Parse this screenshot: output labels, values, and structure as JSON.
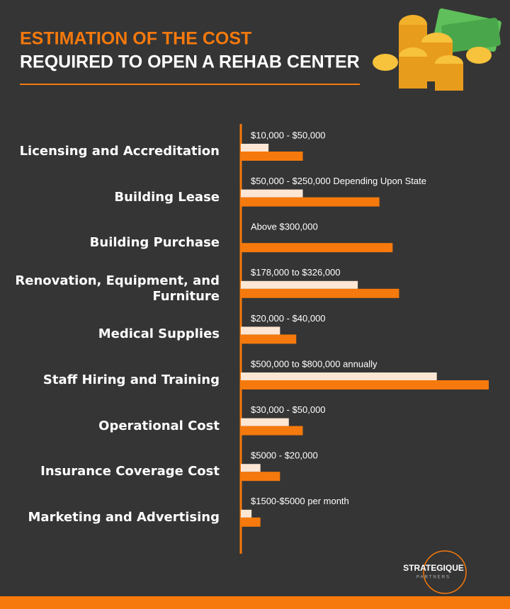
{
  "chart_data": {
    "type": "range-bar",
    "title": "ESTIMATION OF THE COST",
    "subtitle": "REQUIRED TO OPEN A REHAB CENTER",
    "categories": [
      "Licensing and Accreditation",
      "Building Lease",
      "Building Purchase",
      "Renovation, Equipment, and Furniture",
      "Medical Supplies",
      "Staff Hiring and Training",
      "Operational Cost",
      "Insurance Coverage Cost",
      "Marketing and Advertising"
    ],
    "low": [
      10000,
      50000,
      null,
      178000,
      20000,
      500000,
      30000,
      5000,
      1500
    ],
    "high": [
      50000,
      250000,
      300000,
      326000,
      40000,
      800000,
      50000,
      20000,
      5000
    ],
    "value_labels": [
      "$10,000 - $50,000",
      "$50,000 - $250,000 Depending Upon State",
      "Above $300,000",
      "$178,000 to $326,000",
      "$20,000 - $40,000",
      "$500,000 to $800,000 annually",
      "$30,000 - $50,000",
      "$5000 - $20,000",
      "$1500-$5000 per month"
    ],
    "low_color": "#fde6d3",
    "high_color": "#f5790c",
    "xlim": [
      0,
      800000
    ],
    "xscale": "sqrt",
    "logo": {
      "name": "STRATEGIQUE",
      "tagline": "PARTNERS"
    }
  }
}
